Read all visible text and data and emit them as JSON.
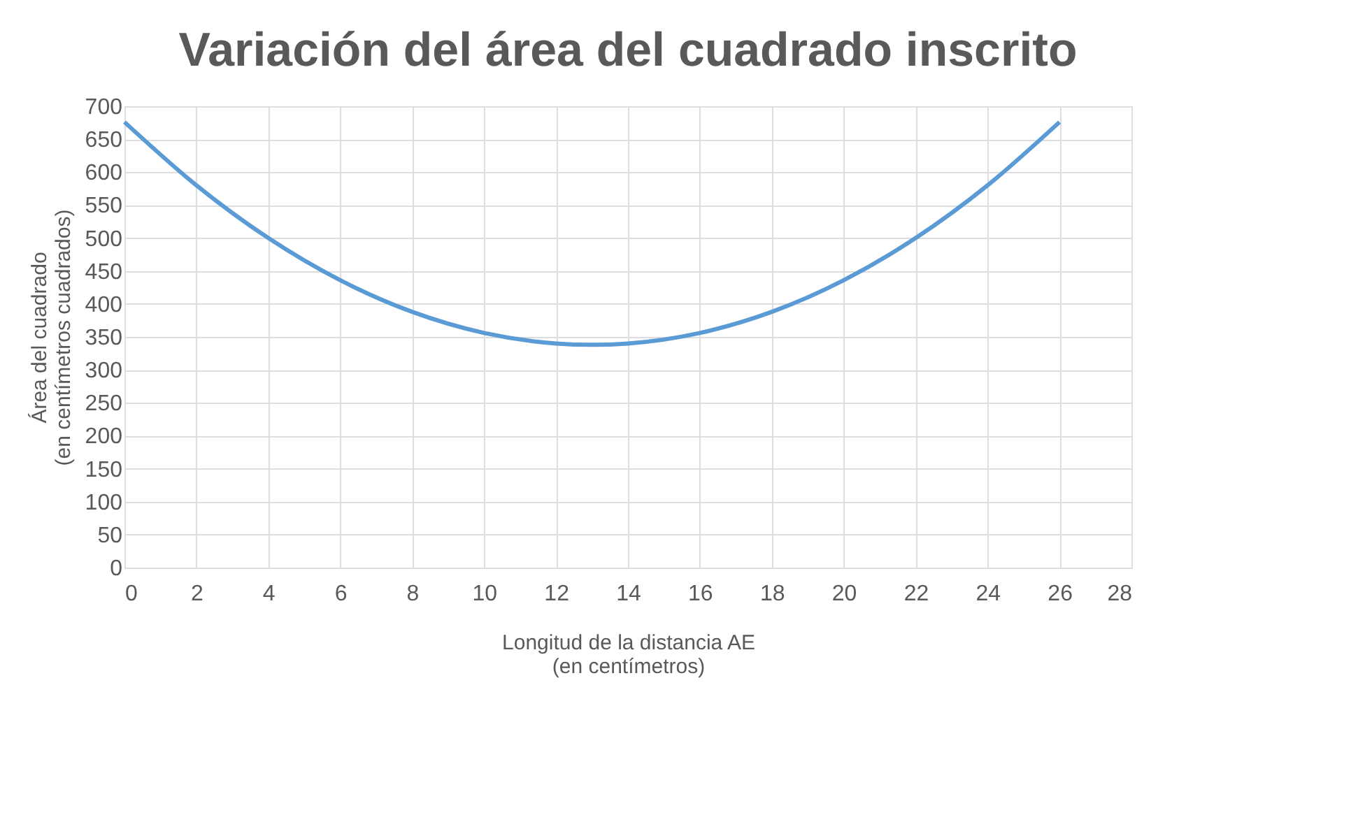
{
  "chart_data": {
    "type": "line",
    "title": "Variación del área del cuadrado inscrito",
    "xlabel": [
      "Longitud de la distancia AE",
      "(en centímetros)"
    ],
    "ylabel": [
      "Área del cuadrado",
      "(en centímetros cuadrados)"
    ],
    "x": [
      0,
      2,
      4,
      6,
      8,
      10,
      12,
      13,
      14,
      16,
      18,
      20,
      22,
      24,
      26
    ],
    "series": [
      {
        "color": "#5b9bd5",
        "values": [
          676,
          580,
          500,
          436,
          388,
          356,
          340,
          338,
          340,
          356,
          388,
          436,
          500,
          580,
          676
        ]
      }
    ],
    "xlim": [
      0,
      28
    ],
    "xticks": [
      0,
      2,
      4,
      6,
      8,
      10,
      12,
      14,
      16,
      18,
      20,
      22,
      24,
      26,
      28
    ],
    "ylim": [
      0,
      700
    ],
    "yticks": [
      0,
      50,
      100,
      150,
      200,
      250,
      300,
      350,
      400,
      450,
      500,
      550,
      600,
      650,
      700
    ],
    "grid": true,
    "marker": "none",
    "line_style": "solid"
  }
}
